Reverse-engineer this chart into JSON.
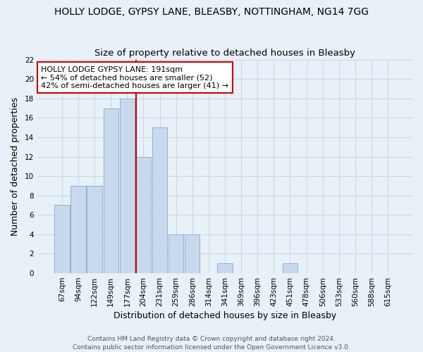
{
  "title": "HOLLY LODGE, GYPSY LANE, BLEASBY, NOTTINGHAM, NG14 7GG",
  "subtitle": "Size of property relative to detached houses in Bleasby",
  "xlabel": "Distribution of detached houses by size in Bleasby",
  "ylabel": "Number of detached properties",
  "bar_labels": [
    "67sqm",
    "94sqm",
    "122sqm",
    "149sqm",
    "177sqm",
    "204sqm",
    "231sqm",
    "259sqm",
    "286sqm",
    "314sqm",
    "341sqm",
    "369sqm",
    "396sqm",
    "423sqm",
    "451sqm",
    "478sqm",
    "506sqm",
    "533sqm",
    "560sqm",
    "588sqm",
    "615sqm"
  ],
  "bar_values": [
    7,
    9,
    9,
    17,
    18,
    12,
    15,
    4,
    4,
    0,
    1,
    0,
    0,
    0,
    1,
    0,
    0,
    0,
    0,
    0,
    0
  ],
  "bar_color": "#c9d9ed",
  "bar_edge_color": "#7aadd4",
  "reference_line_color": "#cc0000",
  "annotation_title": "HOLLY LODGE GYPSY LANE: 191sqm",
  "annotation_line1": "← 54% of detached houses are smaller (52)",
  "annotation_line2": "42% of semi-detached houses are larger (41) →",
  "annotation_box_facecolor": "#ffffff",
  "annotation_box_edgecolor": "#cc0000",
  "ylim": [
    0,
    22
  ],
  "yticks": [
    0,
    2,
    4,
    6,
    8,
    10,
    12,
    14,
    16,
    18,
    20,
    22
  ],
  "grid_color": "#c5d8e8",
  "bg_color": "#e8f0f8",
  "plot_bg_color": "#e8f0f8",
  "footer_line1": "Contains HM Land Registry data © Crown copyright and database right 2024.",
  "footer_line2": "Contains public sector information licensed under the Open Government Licence v3.0.",
  "title_fontsize": 10,
  "subtitle_fontsize": 9.5,
  "axis_label_fontsize": 9,
  "tick_fontsize": 7.5,
  "annotation_fontsize": 8,
  "footer_fontsize": 6.5
}
